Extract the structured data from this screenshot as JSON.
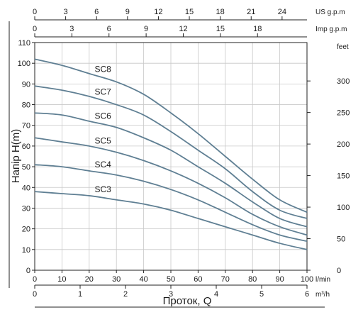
{
  "chart_data": {
    "type": "line",
    "title": "",
    "ylabel": "Напір H(m)",
    "xlabel": "Проток, Q",
    "x_unit": "l/min",
    "xlim": [
      0,
      100
    ],
    "ylim": [
      0,
      110
    ],
    "x_ticks": [
      0,
      10,
      20,
      30,
      40,
      50,
      60,
      70,
      80,
      90,
      100
    ],
    "y_ticks": [
      0,
      10,
      20,
      30,
      40,
      50,
      60,
      70,
      80,
      90,
      100,
      110
    ],
    "grid": true,
    "secondary_axes": {
      "right_feet": {
        "unit": "feet",
        "ticks": [
          0,
          50,
          100,
          150,
          200,
          250,
          300
        ],
        "factor_per_m": 3.2808
      },
      "top_us_gpm": {
        "unit": "US g.p.m",
        "ticks": [
          0,
          3,
          6,
          9,
          12,
          15,
          18,
          21,
          24
        ],
        "factor_per_lmin": 0.26417
      },
      "top_imp_gpm": {
        "unit": "Imp g.p.m",
        "ticks": [
          0,
          3,
          6,
          9,
          12,
          15,
          18
        ],
        "factor_per_lmin": 0.21997
      },
      "bottom_m3h": {
        "unit": "m³/h",
        "ticks": [
          0,
          1,
          2,
          3,
          4,
          5,
          6
        ],
        "factor_per_lmin": 0.06
      }
    },
    "x": [
      0,
      10,
      20,
      30,
      40,
      50,
      60,
      70,
      80,
      90,
      100
    ],
    "series": [
      {
        "name": "SC8",
        "values": [
          102,
          99,
          95,
          91,
          85,
          76,
          66,
          55,
          44,
          34,
          28
        ]
      },
      {
        "name": "SC7",
        "values": [
          89,
          87,
          84,
          80,
          75,
          67,
          58,
          49,
          38,
          29,
          25
        ]
      },
      {
        "name": "SC6",
        "values": [
          76,
          75,
          72,
          69,
          64,
          58,
          50,
          42,
          33,
          25,
          21
        ]
      },
      {
        "name": "SC5",
        "values": [
          64,
          62,
          60,
          57,
          53,
          48,
          42,
          35,
          27,
          21,
          17
        ]
      },
      {
        "name": "SC4",
        "values": [
          51,
          50,
          48,
          46,
          43,
          39,
          34,
          28,
          22,
          17,
          14
        ]
      },
      {
        "name": "SC3",
        "values": [
          38,
          37,
          36,
          34,
          32,
          29,
          25,
          21,
          17,
          13,
          10
        ]
      }
    ]
  }
}
